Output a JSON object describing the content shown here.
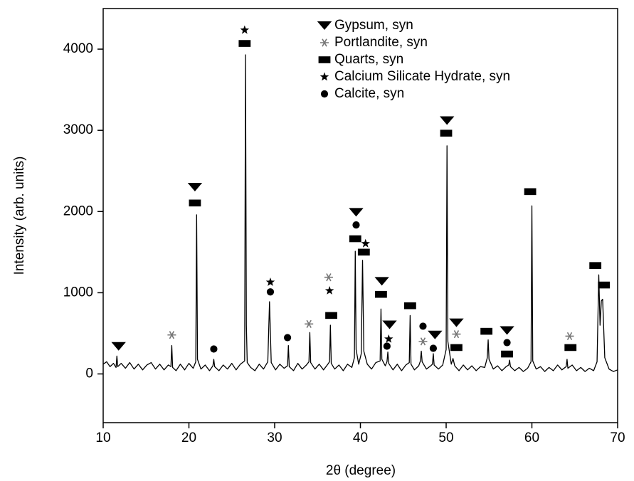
{
  "chart_data": {
    "type": "line",
    "xlabel": "2θ (degree)",
    "ylabel": "Intensity (arb. units)",
    "color": "#000000",
    "xlim": [
      10,
      70
    ],
    "xticks": [
      10,
      20,
      30,
      40,
      50,
      60,
      70
    ],
    "ylim": [
      -600,
      4500
    ],
    "yticks": [
      0,
      1000,
      2000,
      3000,
      4000
    ],
    "x": [
      10,
      10.4,
      10.8,
      11.2,
      11.5,
      11.6,
      11.7,
      12.1,
      12.6,
      13.1,
      13.6,
      14.1,
      14.6,
      15.1,
      15.6,
      16.1,
      16.6,
      17.1,
      17.6,
      17.9,
      18.0,
      18.1,
      18.5,
      19.0,
      19.5,
      20.0,
      20.5,
      20.8,
      20.9,
      21.0,
      21.4,
      21.9,
      22.4,
      22.8,
      22.9,
      23.0,
      23.5,
      24.0,
      24.5,
      25.0,
      25.5,
      26.0,
      26.5,
      26.6,
      26.7,
      26.8,
      27.2,
      27.7,
      28.2,
      28.7,
      29.2,
      29.4,
      29.6,
      30.1,
      30.6,
      31.1,
      31.5,
      31.6,
      31.7,
      32.2,
      32.7,
      33.2,
      33.7,
      34.0,
      34.1,
      34.2,
      34.7,
      35.2,
      35.7,
      36.2,
      36.4,
      36.5,
      36.6,
      37.0,
      37.5,
      38.0,
      38.5,
      39.0,
      39.3,
      39.4,
      39.5,
      39.8,
      40.1,
      40.25,
      40.4,
      40.8,
      41.3,
      41.8,
      42.3,
      42.4,
      42.5,
      42.9,
      43.1,
      43.2,
      43.3,
      43.8,
      44.3,
      44.8,
      45.3,
      45.7,
      45.8,
      45.9,
      46.3,
      46.8,
      47.0,
      47.1,
      47.2,
      47.7,
      48.2,
      48.4,
      48.5,
      48.6,
      49.1,
      49.6,
      50.0,
      50.1,
      50.2,
      50.6,
      50.8,
      51.0,
      51.5,
      52.0,
      52.5,
      53.0,
      53.5,
      54.0,
      54.5,
      54.8,
      54.9,
      55.0,
      55.5,
      56.0,
      56.5,
      57.0,
      57.3,
      57.4,
      57.5,
      58.0,
      58.5,
      59.0,
      59.5,
      59.9,
      60.0,
      60.1,
      60.5,
      61.0,
      61.5,
      62.0,
      62.5,
      63.0,
      63.5,
      64.0,
      64.1,
      64.2,
      64.7,
      65.2,
      65.7,
      66.2,
      66.7,
      67.2,
      67.6,
      67.8,
      67.95,
      68.1,
      68.25,
      68.5,
      69.0,
      69.5,
      70
    ],
    "values": [
      120,
      150,
      90,
      130,
      80,
      220,
      90,
      130,
      70,
      140,
      60,
      120,
      50,
      110,
      140,
      60,
      120,
      50,
      110,
      90,
      350,
      80,
      40,
      120,
      50,
      130,
      70,
      150,
      1960,
      180,
      60,
      110,
      40,
      100,
      180,
      90,
      40,
      110,
      60,
      130,
      50,
      120,
      160,
      3930,
      600,
      140,
      80,
      40,
      120,
      60,
      150,
      890,
      140,
      50,
      120,
      70,
      100,
      350,
      90,
      40,
      130,
      60,
      110,
      150,
      510,
      140,
      60,
      120,
      50,
      120,
      150,
      600,
      130,
      60,
      110,
      40,
      120,
      80,
      200,
      1510,
      300,
      120,
      250,
      1400,
      280,
      120,
      60,
      140,
      160,
      800,
      180,
      100,
      150,
      270,
      130,
      50,
      120,
      40,
      110,
      140,
      720,
      120,
      50,
      100,
      160,
      280,
      150,
      60,
      100,
      120,
      250,
      110,
      60,
      110,
      300,
      2810,
      400,
      120,
      190,
      100,
      40,
      110,
      50,
      100,
      40,
      90,
      80,
      200,
      420,
      180,
      60,
      100,
      40,
      90,
      110,
      170,
      90,
      40,
      80,
      30,
      70,
      150,
      2070,
      160,
      60,
      90,
      30,
      80,
      40,
      110,
      50,
      90,
      180,
      70,
      110,
      40,
      80,
      30,
      70,
      40,
      150,
      1220,
      600,
      900,
      920,
      200,
      60,
      30,
      50
    ],
    "phases": [
      {
        "name": "Gypsum, syn",
        "marker": "triangle-down"
      },
      {
        "name": "Portlandite, syn",
        "marker": "asterisk"
      },
      {
        "name": "Quarts, syn",
        "marker": "square"
      },
      {
        "name": "Calcium Silicate Hydrate, syn",
        "marker": "star"
      },
      {
        "name": "Calcite, syn",
        "marker": "circle"
      }
    ],
    "markers": [
      {
        "phase": 0,
        "x": 11.8,
        "y": 340
      },
      {
        "phase": 0,
        "x": 20.7,
        "y": 2300
      },
      {
        "phase": 0,
        "x": 39.5,
        "y": 1990
      },
      {
        "phase": 0,
        "x": 50.1,
        "y": 3120
      },
      {
        "phase": 0,
        "x": 42.5,
        "y": 1140
      },
      {
        "phase": 0,
        "x": 43.4,
        "y": 605
      },
      {
        "phase": 0,
        "x": 48.7,
        "y": 480
      },
      {
        "phase": 0,
        "x": 51.2,
        "y": 630
      },
      {
        "phase": 0,
        "x": 57.1,
        "y": 535
      },
      {
        "phase": 1,
        "x": 18.0,
        "y": 480
      },
      {
        "phase": 1,
        "x": 34.0,
        "y": 615
      },
      {
        "phase": 1,
        "x": 36.3,
        "y": 1190
      },
      {
        "phase": 1,
        "x": 47.3,
        "y": 400
      },
      {
        "phase": 1,
        "x": 51.2,
        "y": 490
      },
      {
        "phase": 1,
        "x": 64.4,
        "y": 465
      },
      {
        "phase": 2,
        "x": 20.7,
        "y": 2105
      },
      {
        "phase": 2,
        "x": 26.5,
        "y": 4070
      },
      {
        "phase": 2,
        "x": 36.6,
        "y": 720
      },
      {
        "phase": 2,
        "x": 39.4,
        "y": 1665
      },
      {
        "phase": 2,
        "x": 40.4,
        "y": 1500
      },
      {
        "phase": 2,
        "x": 42.4,
        "y": 980
      },
      {
        "phase": 2,
        "x": 45.8,
        "y": 840
      },
      {
        "phase": 2,
        "x": 50.0,
        "y": 2965
      },
      {
        "phase": 2,
        "x": 51.2,
        "y": 325
      },
      {
        "phase": 2,
        "x": 54.7,
        "y": 525
      },
      {
        "phase": 2,
        "x": 57.1,
        "y": 245
      },
      {
        "phase": 2,
        "x": 59.8,
        "y": 2245
      },
      {
        "phase": 2,
        "x": 64.5,
        "y": 325
      },
      {
        "phase": 2,
        "x": 67.4,
        "y": 1335
      },
      {
        "phase": 2,
        "x": 68.4,
        "y": 1095
      },
      {
        "phase": 3,
        "x": 26.5,
        "y": 4235
      },
      {
        "phase": 3,
        "x": 29.5,
        "y": 1130
      },
      {
        "phase": 3,
        "x": 36.4,
        "y": 1025
      },
      {
        "phase": 3,
        "x": 40.6,
        "y": 1605
      },
      {
        "phase": 3,
        "x": 43.3,
        "y": 430
      },
      {
        "phase": 4,
        "x": 22.9,
        "y": 307
      },
      {
        "phase": 4,
        "x": 29.5,
        "y": 1010
      },
      {
        "phase": 4,
        "x": 31.5,
        "y": 447
      },
      {
        "phase": 4,
        "x": 39.5,
        "y": 1835
      },
      {
        "phase": 4,
        "x": 43.1,
        "y": 342
      },
      {
        "phase": 4,
        "x": 47.3,
        "y": 588
      },
      {
        "phase": 4,
        "x": 48.5,
        "y": 316
      },
      {
        "phase": 4,
        "x": 57.1,
        "y": 386
      }
    ]
  }
}
